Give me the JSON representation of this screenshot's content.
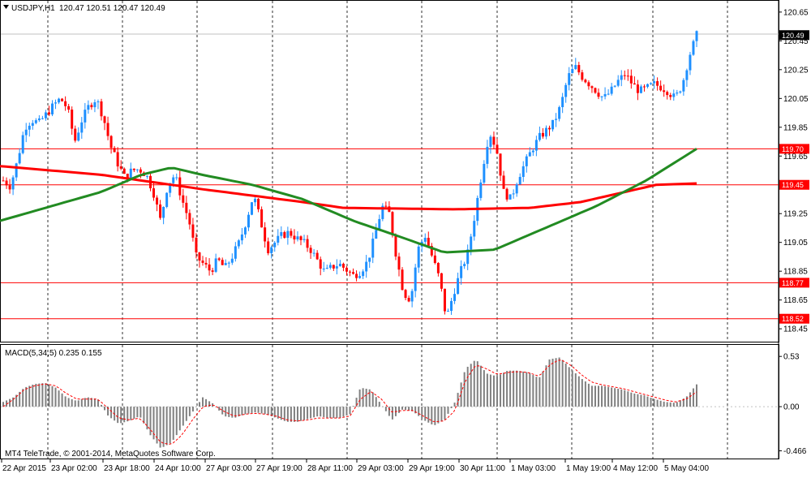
{
  "header": {
    "symbol_label": "USDJPY,H1",
    "ohlc_label": "120.47 120.51 120.47 120.49"
  },
  "macd_label": "MACD(5,34,5) 0.235 0.155",
  "footer_text": "MT4 TeleTrade, © 2001-2014, MetaQuotes Software Corp.",
  "colors": {
    "bull": "#1E90FF",
    "bear": "#FF0000",
    "ma_red": "#FF0000",
    "ma_green": "#228B22",
    "level_line": "#FF0000",
    "grid": "#000000",
    "macd_hist": "#808080",
    "macd_signal": "#FF0000",
    "current_tag": "#000000"
  },
  "chart_data": {
    "type": "candlestick",
    "price_axis": {
      "range": [
        118.4,
        120.7
      ],
      "ticks": [
        "120.65",
        "120.45",
        "120.25",
        "120.05",
        "119.85",
        "119.65",
        "119.45",
        "119.25",
        "119.05",
        "118.85",
        "118.65",
        "118.45"
      ]
    },
    "time_labels": [
      "22 Apr 2015",
      "23 Apr 02:00",
      "23 Apr 18:00",
      "24 Apr 10:00",
      "27 Apr 03:00",
      "27 Apr 19:00",
      "28 Apr 11:00",
      "29 Apr 03:00",
      "29 Apr 19:00",
      "30 Apr 11:00",
      "1 May 03:00",
      "1 May 19:00",
      "4 May 12:00",
      "5 May 04:00"
    ],
    "current_price": "120.49",
    "levels": [
      "119.70",
      "119.45",
      "118.77",
      "118.52"
    ],
    "ohlc_keypoints": [
      119.48,
      119.44,
      119.62,
      119.85,
      119.9,
      119.88,
      119.94,
      120.0,
      120.05,
      119.98,
      119.75,
      119.9,
      120.0,
      120.05,
      119.92,
      119.72,
      119.6,
      119.5,
      119.55,
      119.56,
      119.52,
      119.4,
      119.2,
      119.45,
      119.52,
      119.35,
      119.2,
      118.95,
      118.9,
      118.85,
      118.93,
      118.87,
      118.95,
      119.05,
      119.2,
      119.38,
      119.2,
      119.0,
      119.05,
      119.1,
      119.12,
      119.08,
      119.05,
      119.0,
      118.92,
      118.84,
      118.88,
      118.9,
      118.86,
      118.82,
      118.85,
      118.92,
      119.1,
      119.3,
      119.25,
      118.95,
      118.7,
      118.65,
      119.0,
      119.1,
      118.95,
      118.8,
      118.52,
      118.7,
      118.85,
      118.98,
      119.25,
      119.55,
      119.82,
      119.7,
      119.4,
      119.35,
      119.5,
      119.6,
      119.7,
      119.78,
      119.83,
      119.88,
      120.0,
      120.2,
      120.27,
      120.2,
      120.15,
      120.1,
      120.05,
      120.1,
      120.17,
      120.22,
      120.15,
      120.1,
      120.12,
      120.15,
      120.13,
      120.1,
      120.05,
      120.15,
      120.35,
      120.49
    ],
    "ma_red_keypoints": [
      [
        0,
        119.58
      ],
      [
        20,
        119.52
      ],
      [
        40,
        119.42
      ],
      [
        60,
        119.33
      ],
      [
        68,
        119.29
      ],
      [
        90,
        119.28
      ],
      [
        105,
        119.29
      ],
      [
        115,
        119.33
      ],
      [
        130,
        119.45
      ],
      [
        138,
        119.46
      ]
    ],
    "ma_green_keypoints": [
      [
        0,
        119.2
      ],
      [
        10,
        119.3
      ],
      [
        20,
        119.4
      ],
      [
        28,
        119.52
      ],
      [
        34,
        119.57
      ],
      [
        40,
        119.52
      ],
      [
        50,
        119.45
      ],
      [
        60,
        119.35
      ],
      [
        70,
        119.2
      ],
      [
        80,
        119.08
      ],
      [
        88,
        118.98
      ],
      [
        98,
        119.0
      ],
      [
        108,
        119.15
      ],
      [
        118,
        119.3
      ],
      [
        128,
        119.48
      ],
      [
        138,
        119.7
      ]
    ],
    "macd": {
      "axis_ticks": [
        "0.53",
        "0.00",
        "-0.466"
      ],
      "range": [
        -0.53,
        0.6
      ],
      "hist_keypoints": [
        0.05,
        0.1,
        0.2,
        0.24,
        0.25,
        0.2,
        0.1,
        0.06,
        0.1,
        0.08,
        -0.1,
        -0.18,
        -0.15,
        -0.1,
        -0.3,
        -0.44,
        -0.38,
        -0.22,
        -0.06,
        0.1,
        0.03,
        -0.1,
        -0.12,
        -0.08,
        -0.06,
        -0.08,
        -0.12,
        -0.16,
        -0.16,
        -0.13,
        -0.1,
        -0.12,
        -0.12,
        -0.08,
        0.2,
        0.18,
        0.02,
        -0.14,
        -0.03,
        -0.05,
        -0.14,
        -0.2,
        -0.14,
        0.05,
        0.4,
        0.5,
        0.35,
        0.32,
        0.38,
        0.38,
        0.36,
        0.3,
        0.5,
        0.52,
        0.4,
        0.3,
        0.22,
        0.22,
        0.2,
        0.18,
        0.14,
        0.12,
        0.08,
        0.05,
        0.04,
        0.1,
        0.235
      ],
      "signal_keypoints": [
        0.0,
        0.08,
        0.18,
        0.22,
        0.24,
        0.22,
        0.14,
        0.08,
        0.08,
        0.08,
        -0.02,
        -0.12,
        -0.14,
        -0.12,
        -0.24,
        -0.38,
        -0.4,
        -0.3,
        -0.14,
        0.0,
        0.02,
        -0.05,
        -0.1,
        -0.08,
        -0.07,
        -0.08,
        -0.1,
        -0.14,
        -0.15,
        -0.14,
        -0.12,
        -0.12,
        -0.12,
        -0.1,
        0.08,
        0.16,
        0.08,
        -0.06,
        -0.04,
        -0.04,
        -0.1,
        -0.16,
        -0.15,
        -0.04,
        0.28,
        0.44,
        0.4,
        0.34,
        0.36,
        0.37,
        0.36,
        0.32,
        0.44,
        0.5,
        0.44,
        0.34,
        0.26,
        0.23,
        0.21,
        0.19,
        0.16,
        0.13,
        0.1,
        0.07,
        0.05,
        0.08,
        0.155
      ]
    }
  }
}
